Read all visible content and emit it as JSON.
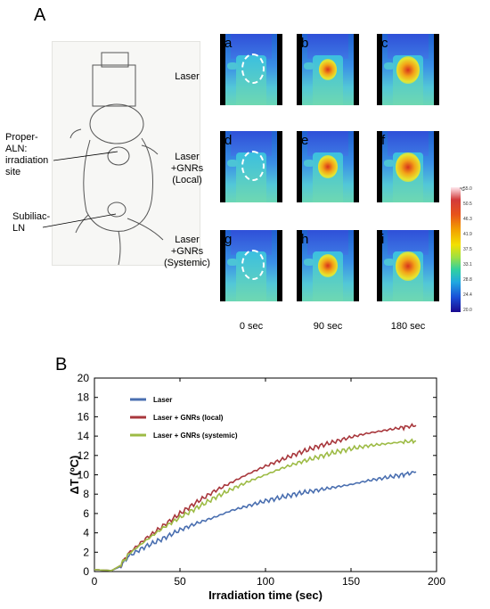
{
  "panel_a_letter": "A",
  "panel_b_letter": "B",
  "callouts": {
    "proper_aln": "Proper-\nALN:\nirradiation\nsite",
    "subiliac": "Subiliac-\nLN"
  },
  "row_labels": [
    "Laser",
    "Laser\n+GNRs\n(Local)",
    "Laser\n+GNRs\n(Systemic)"
  ],
  "image_letters": [
    "a",
    "b",
    "c",
    "d",
    "e",
    "f",
    "g",
    "h",
    "i"
  ],
  "time_labels": [
    "0 sec",
    "90 sec",
    "180 sec"
  ],
  "colorbar": {
    "unit": "°C",
    "ticks": [
      "55.0",
      "50.5",
      "46.3",
      "41.9",
      "37.5",
      "33.1",
      "28.8",
      "24.4",
      "20.0"
    ]
  },
  "colors": {
    "laser": "#4a6fb0",
    "local": "#a8373c",
    "systemic": "#9dbb45"
  },
  "chart_data": {
    "type": "line",
    "title": "",
    "xlabel": "Irradiation time (sec)",
    "ylabel": "ΔT (ºC)",
    "xlim": [
      0,
      200
    ],
    "ylim": [
      0,
      20
    ],
    "xticks": [
      0,
      50,
      100,
      150,
      200
    ],
    "yticks": [
      0,
      2,
      4,
      6,
      8,
      10,
      12,
      14,
      16,
      18,
      20
    ],
    "grid": false,
    "legend_position": "top-left",
    "series": [
      {
        "name": "Laser",
        "x": [
          0,
          10,
          15,
          20,
          30,
          40,
          50,
          60,
          70,
          80,
          90,
          100,
          110,
          120,
          130,
          140,
          150,
          160,
          170,
          180,
          188
        ],
        "y": [
          0.2,
          0.1,
          0.5,
          1.6,
          2.6,
          3.4,
          4.3,
          5.0,
          5.6,
          6.3,
          6.8,
          7.3,
          7.7,
          8.1,
          8.4,
          8.7,
          9.0,
          9.4,
          9.7,
          10.0,
          10.3
        ]
      },
      {
        "name": "Laser + GNRs (local)",
        "x": [
          0,
          10,
          15,
          20,
          30,
          40,
          50,
          60,
          70,
          80,
          90,
          100,
          110,
          120,
          130,
          140,
          150,
          160,
          170,
          180,
          188
        ],
        "y": [
          0.2,
          0.1,
          0.6,
          1.9,
          3.4,
          4.7,
          6.0,
          7.2,
          8.3,
          9.2,
          10.1,
          10.9,
          11.6,
          12.3,
          12.9,
          13.4,
          13.9,
          14.3,
          14.6,
          14.9,
          15.1
        ]
      },
      {
        "name": "Laser + GNRs (systemic)",
        "x": [
          0,
          10,
          15,
          20,
          30,
          40,
          50,
          60,
          70,
          80,
          90,
          100,
          110,
          120,
          130,
          140,
          150,
          160,
          170,
          180,
          188
        ],
        "y": [
          0.2,
          0.1,
          0.6,
          1.8,
          3.2,
          4.5,
          5.6,
          6.6,
          7.6,
          8.5,
          9.3,
          10.0,
          10.7,
          11.3,
          11.8,
          12.3,
          12.7,
          13.0,
          13.2,
          13.4,
          13.5
        ]
      }
    ]
  }
}
